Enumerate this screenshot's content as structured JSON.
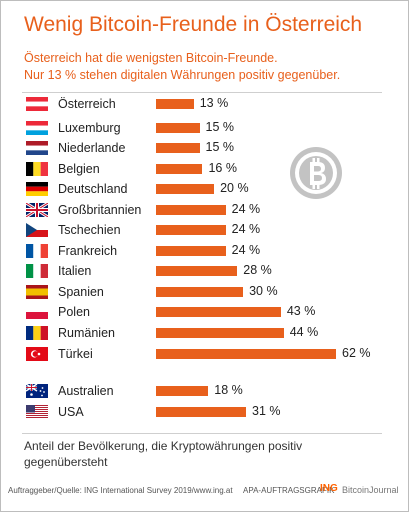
{
  "title": "Wenig Bitcoin-Freunde in Österreich",
  "subtitle_line1": "Österreich hat die wenigsten Bitcoin-Freunde.",
  "subtitle_line2": "Nur 13 % stehen digitalen Währungen positiv gegenüber.",
  "chart_data": {
    "type": "bar",
    "orientation": "horizontal",
    "categories": [
      "Österreich",
      "Luxemburg",
      "Niederlande",
      "Belgien",
      "Deutschland",
      "Großbritannien",
      "Tschechien",
      "Frankreich",
      "Italien",
      "Spanien",
      "Polen",
      "Rumänien",
      "Türkei",
      "Australien",
      "USA"
    ],
    "values": [
      13,
      15,
      15,
      16,
      20,
      24,
      24,
      24,
      28,
      30,
      43,
      44,
      62,
      18,
      31
    ],
    "value_labels": [
      "13 %",
      "15 %",
      "15 %",
      "16 %",
      "20 %",
      "24 %",
      "24 %",
      "24 %",
      "28 %",
      "30 %",
      "43 %",
      "44 %",
      "62 %",
      "18 %",
      "31 %"
    ],
    "unit": "%",
    "bar_color": "#e8601c",
    "xlabel": "",
    "ylabel": "",
    "xlim": [
      0,
      62
    ]
  },
  "note": "Anteil der Bevölkerung, die Kryptowährungen positiv gegenübersteht",
  "footer_source": "Auftraggeber/Quelle: ING International Survey 2019/www.ing.at",
  "footer_credit": "APA-AUFTRAGSGRAFIK",
  "footer_brand": "ING",
  "watermark": "BitcoinJournal",
  "logo_icon": "bitcoin-icon",
  "colors": {
    "accent": "#e8601c",
    "text": "#222222",
    "logo": "#bdbdbd"
  }
}
